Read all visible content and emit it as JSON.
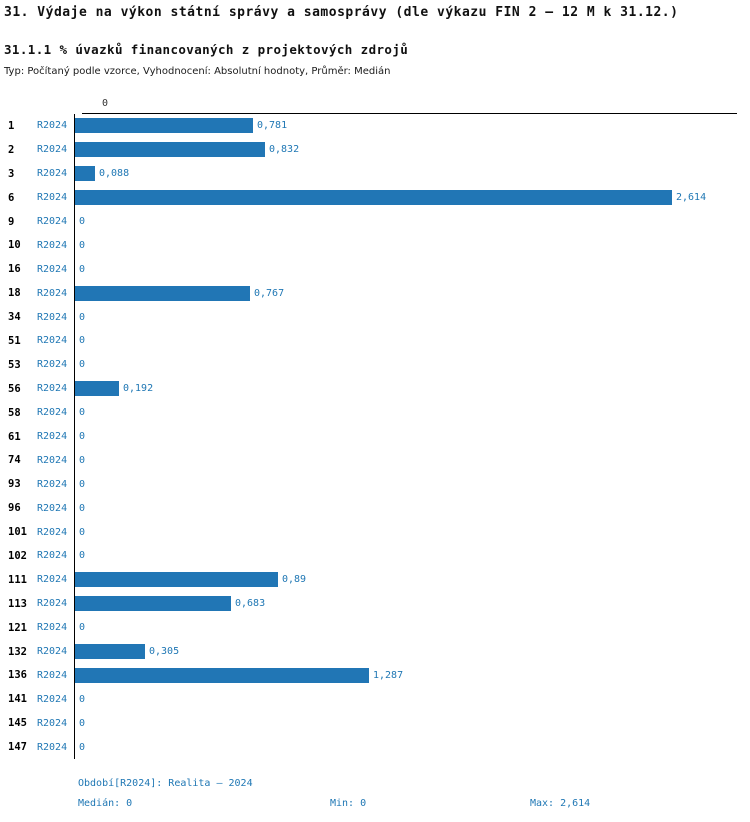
{
  "header": {
    "title": "31. Výdaje na výkon státní správy a samosprávy (dle výkazu FIN 2 – 12 M k 31.12.)",
    "subtitle": "31.1.1 % úvazků financovaných z projektových zdrojů",
    "meta": "Typ: Počítaný podle vzorce, Vyhodnocení: Absolutní hodnoty, Průměr: Medián"
  },
  "chart_data": {
    "type": "bar",
    "orientation": "horizontal",
    "title": "31.1.1 % úvazků financovaných z projektových zdrojů",
    "series_label": "R2024",
    "axis_tick": "0",
    "categories": [
      "1",
      "2",
      "3",
      "6",
      "9",
      "10",
      "16",
      "18",
      "34",
      "51",
      "53",
      "56",
      "58",
      "61",
      "74",
      "93",
      "96",
      "101",
      "102",
      "111",
      "113",
      "121",
      "132",
      "136",
      "141",
      "145",
      "147"
    ],
    "values": [
      0.781,
      0.832,
      0.088,
      2.614,
      0,
      0,
      0,
      0.767,
      0,
      0,
      0,
      0.192,
      0,
      0,
      0,
      0,
      0,
      0,
      0,
      0.89,
      0.683,
      0,
      0.305,
      1.287,
      0,
      0,
      0
    ],
    "value_labels": [
      "0,781",
      "0,832",
      "0,088",
      "2,614",
      "0",
      "0",
      "0",
      "0,767",
      "0",
      "0",
      "0",
      "0,192",
      "0",
      "0",
      "0",
      "0",
      "0",
      "0",
      "0",
      "0,89",
      "0,683",
      "0",
      "0,305",
      "1,287",
      "0",
      "0",
      "0"
    ],
    "xlim": [
      0,
      2.614
    ],
    "grid": false,
    "legend_position": "none"
  },
  "footer": {
    "period": "Období[R2024]: Realita – 2024",
    "median": "Medián: 0",
    "min": "Min: 0",
    "max": "Max: 2,614"
  },
  "colors": {
    "bar": "#2176b5",
    "text_blue": "#1f77b4",
    "axis": "#000000"
  }
}
